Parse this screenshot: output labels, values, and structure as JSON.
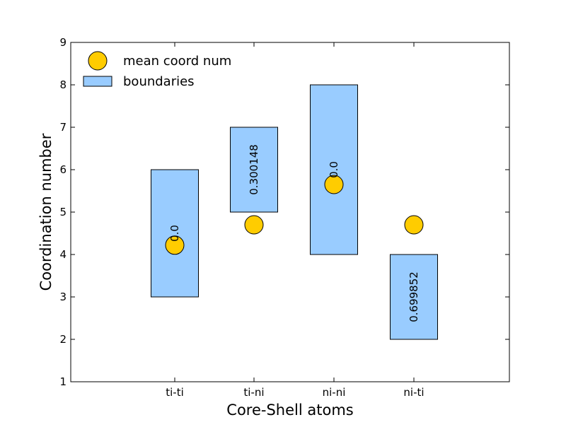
{
  "chart_data": {
    "type": "bar",
    "xlabel": "Core-Shell atoms",
    "ylabel": "Coordination number",
    "categories": [
      "ti-ti",
      "ti-ni",
      "ni-ni",
      "ni-ti"
    ],
    "ylim": [
      1,
      9
    ],
    "yticks": [
      "1",
      "2",
      "3",
      "4",
      "5",
      "6",
      "7",
      "8",
      "9"
    ],
    "grid": false,
    "legend_position": "top-left",
    "legend": [
      {
        "label": "mean coord num",
        "marker": "circle"
      },
      {
        "label": "boundaries",
        "marker": "rect"
      }
    ],
    "series": [
      {
        "name": "boundaries",
        "kind": "floating-bar",
        "low": [
          3,
          5,
          4,
          2
        ],
        "high": [
          6,
          7,
          8,
          4
        ],
        "labels": [
          "0.0",
          "0.300148",
          "0.0",
          "0.699852"
        ],
        "color": "#99ccff"
      },
      {
        "name": "mean coord num",
        "kind": "scatter",
        "values": [
          4.22,
          4.7,
          5.65,
          4.7
        ],
        "color": "#ffcc00"
      }
    ]
  }
}
